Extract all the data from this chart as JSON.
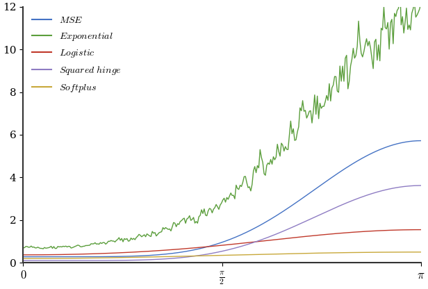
{
  "xlim": [
    0,
    3.14159265
  ],
  "ylim": [
    0,
    12
  ],
  "yticks": [
    0,
    2,
    4,
    6,
    8,
    10,
    12
  ],
  "xticks": [
    0,
    1.5707963,
    3.14159265
  ],
  "xticklabels": [
    "$0$",
    "$\\frac{\\pi}{2}$",
    "$\\pi$"
  ],
  "line_colors": {
    "MSE": "#4472C4",
    "Exponential": "#5B9E3C",
    "Logistic": "#C0392B",
    "Squared hinge": "#8E7CC3",
    "Softplus": "#C8A83A"
  },
  "background_color": "#FFFFFF",
  "n_points": 300,
  "noise_seed": 42,
  "spine_color": "#333333"
}
